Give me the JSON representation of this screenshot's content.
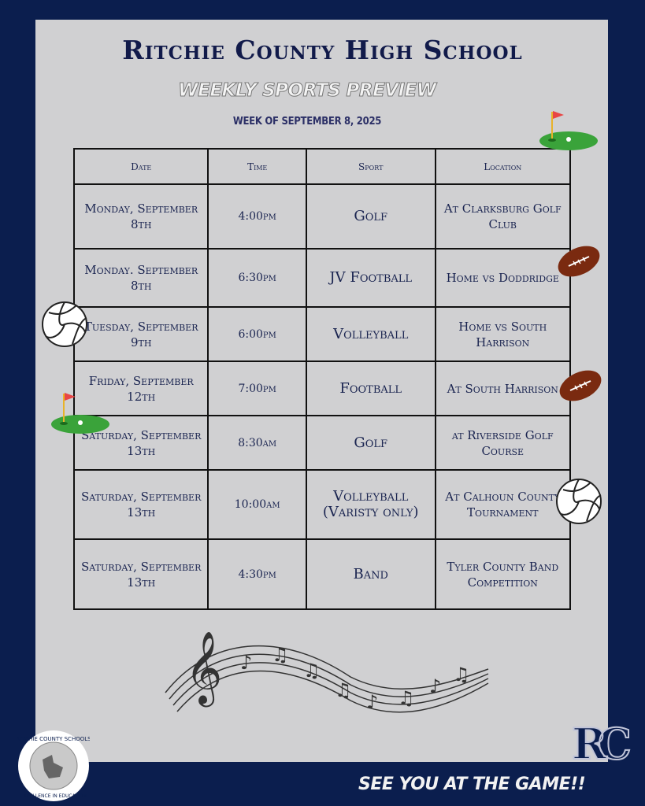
{
  "header": {
    "title": "Ritchie County High School",
    "subtitle": "WEEKLY SPORTS PREVIEW",
    "week": "WEEK OF SEPTEMBER 8, 2025"
  },
  "table": {
    "columns": [
      "Date",
      "Time",
      "Sport",
      "Location"
    ],
    "rows": [
      {
        "date": "Monday, September 8th",
        "time": "4:00pm",
        "sport": "Golf",
        "location": "At Clarksburg Golf Club"
      },
      {
        "date": "Monday. September 8th",
        "time": "6:30pm",
        "sport": "JV Football",
        "location": "Home vs Doddridge"
      },
      {
        "date": "Tuesday, September 9th",
        "time": "6:00pm",
        "sport": "Volleyball",
        "location": "Home vs South Harrison"
      },
      {
        "date": "Friday, September 12th",
        "time": "7:00pm",
        "sport": "Football",
        "location": "At South Harrison"
      },
      {
        "date": "Saturday, September 13th",
        "time": "8:30am",
        "sport": "Golf",
        "location": "at Riverside Golf Course"
      },
      {
        "date": "Saturday, September 13th",
        "time": "10:00am",
        "sport": "Volleyball (Varisty only)",
        "location": "At Calhoun County Tournament"
      },
      {
        "date": "Saturday, September 13th",
        "time": "4:30pm",
        "sport": "Band",
        "location": "Tyler County Band Competition"
      }
    ]
  },
  "footer": {
    "tagline": "SEE YOU AT THE GAME!!",
    "logo_text": "RITCHIE COUNTY SCHOOLS · EXCELLENCE IN EDUCATION",
    "monogram": "RC"
  },
  "colors": {
    "background": "#0b1e4e",
    "panel": "#d0d0d2",
    "text": "#1a2450"
  }
}
